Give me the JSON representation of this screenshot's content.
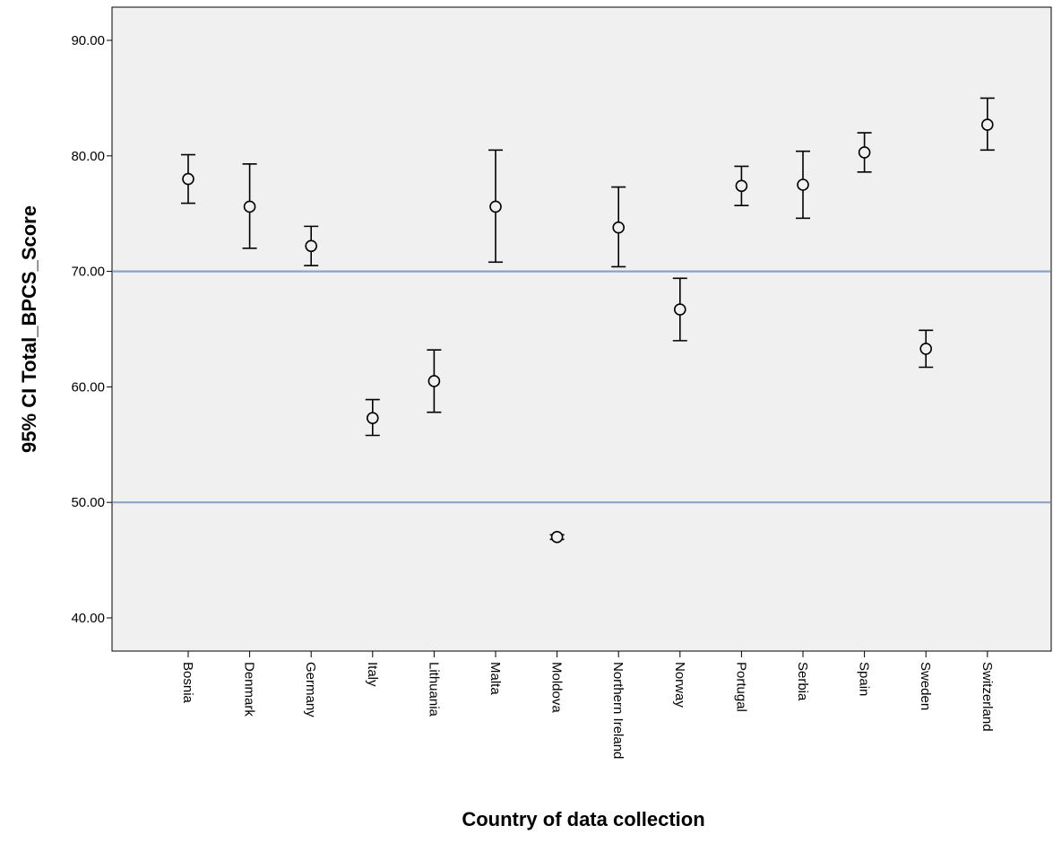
{
  "chart_data": {
    "type": "scatter",
    "subtype": "error-bar",
    "xlabel": "Country of data collection",
    "ylabel": "95% CI Total_BPCS_Score",
    "ylim": [
      37,
      92
    ],
    "yticks": [
      "40.00",
      "50.00",
      "60.00",
      "70.00",
      "80.00",
      "90.00"
    ],
    "ytick_values": [
      40,
      50,
      60,
      70,
      80,
      90
    ],
    "categories": [
      "Bosnia",
      "Denmark",
      "Germany",
      "Italy",
      "Lithuania",
      "Malta",
      "Moldova",
      "Northern Ireland",
      "Norway",
      "Portugal",
      "Serbia",
      "Spain",
      "Sweden",
      "Switzerland"
    ],
    "mean": [
      78.0,
      75.6,
      72.2,
      57.3,
      60.5,
      75.6,
      47.0,
      73.8,
      66.7,
      77.4,
      77.5,
      80.3,
      63.3,
      82.7
    ],
    "lower": [
      75.9,
      72.0,
      70.5,
      55.8,
      57.8,
      70.8,
      46.8,
      70.4,
      64.0,
      75.7,
      74.6,
      78.6,
      61.7,
      80.5
    ],
    "upper": [
      80.1,
      79.3,
      73.9,
      58.9,
      63.2,
      80.5,
      47.2,
      77.3,
      69.4,
      79.1,
      80.4,
      82.0,
      64.9,
      85.0
    ],
    "reference_lines": [
      70,
      50
    ],
    "grid": false,
    "colors": {
      "plot_background": "#f0f0f0",
      "reference_line": "#8ea0cc",
      "marker": "#000000"
    }
  }
}
